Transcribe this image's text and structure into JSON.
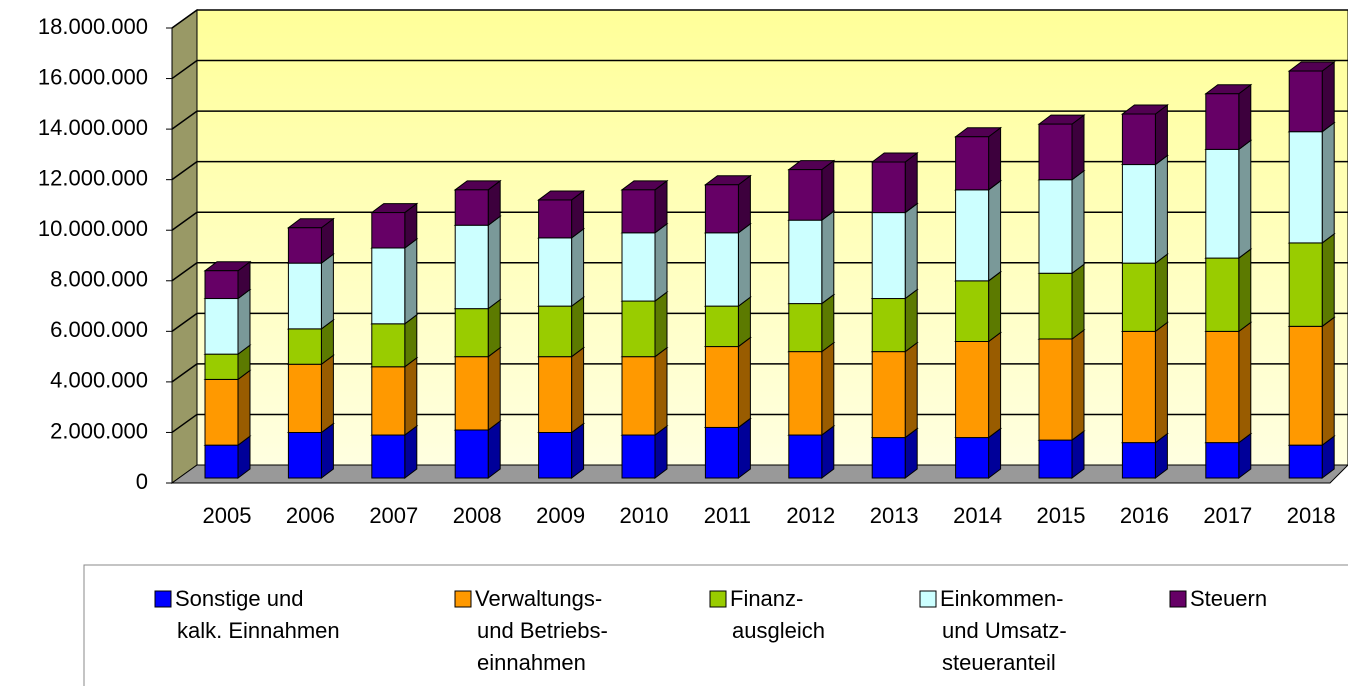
{
  "chart_data": {
    "type": "bar",
    "stacked": true,
    "categories": [
      "2005",
      "2006",
      "2007",
      "2008",
      "2009",
      "2010",
      "2011",
      "2012",
      "2013",
      "2014",
      "2015",
      "2016",
      "2017",
      "2018"
    ],
    "series": [
      {
        "name": "Sonstige und\nkalk. Einnahmen",
        "color": "#0000ff",
        "values": [
          1300000,
          1800000,
          1700000,
          1900000,
          1800000,
          1700000,
          2000000,
          1700000,
          1600000,
          1600000,
          1500000,
          1400000,
          1400000,
          1300000
        ]
      },
      {
        "name": "Verwaltungs-\nund Betriebs-\neinnahmen",
        "color": "#ff9900",
        "values": [
          2600000,
          2700000,
          2700000,
          2900000,
          3000000,
          3100000,
          3200000,
          3300000,
          3400000,
          3800000,
          4000000,
          4400000,
          4400000,
          4700000
        ]
      },
      {
        "name": "Finanz-\nausgleich",
        "color": "#99cc00",
        "values": [
          1000000,
          1400000,
          1700000,
          1900000,
          2000000,
          2200000,
          1600000,
          1900000,
          2100000,
          2400000,
          2600000,
          2700000,
          2900000,
          3300000
        ]
      },
      {
        "name": "Einkommen-\nund Umsatz-\nsteueranteil",
        "color": "#ccffff",
        "values": [
          2200000,
          2600000,
          3000000,
          3300000,
          2700000,
          2700000,
          2900000,
          3300000,
          3400000,
          3600000,
          3700000,
          3900000,
          4300000,
          4400000
        ]
      },
      {
        "name": "Steuern",
        "color": "#660066",
        "values": [
          1100000,
          1400000,
          1400000,
          1400000,
          1500000,
          1700000,
          1900000,
          2000000,
          2000000,
          2100000,
          2200000,
          2000000,
          2200000,
          2400000
        ]
      }
    ],
    "ylim": [
      0,
      18000000
    ],
    "yticks": [
      0,
      {
        "value": 2000000,
        "label": "2.000.000"
      },
      {
        "value": 4000000,
        "label": "4.000.000"
      },
      {
        "value": 6000000,
        "label": "6.000.000"
      },
      {
        "value": 8000000,
        "label": "8.000.000"
      },
      {
        "value": 10000000,
        "label": "10.000.000"
      },
      {
        "value": 12000000,
        "label": "12.000.000"
      },
      {
        "value": 14000000,
        "label": "14.000.000"
      },
      {
        "value": 16000000,
        "label": "16.000.000"
      },
      {
        "value": 18000000,
        "label": "18.000.000"
      }
    ],
    "grid": true,
    "legend": "bottom"
  }
}
